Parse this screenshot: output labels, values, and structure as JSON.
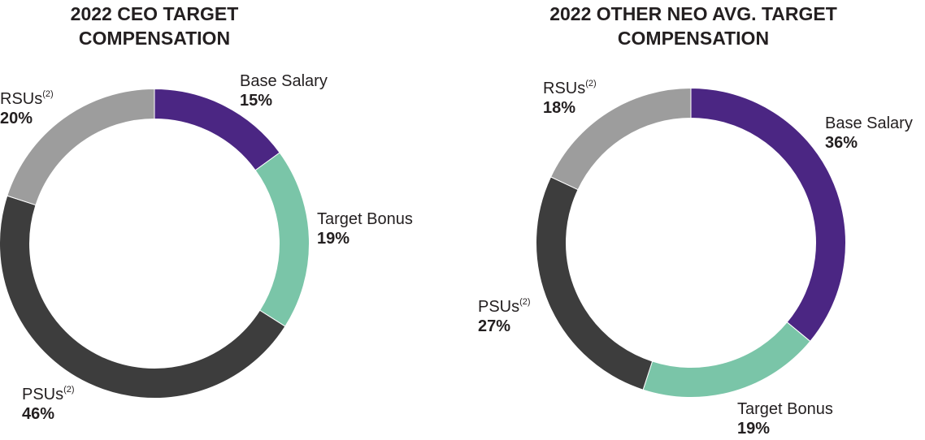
{
  "chart_data": [
    {
      "type": "pie",
      "title": "2022 CEO TARGET COMPENSATION",
      "categories": [
        "Base Salary",
        "Target Bonus",
        "PSUs",
        "RSUs"
      ],
      "values": [
        15,
        19,
        46,
        20
      ],
      "value_labels": [
        "15%",
        "19%",
        "46%",
        "20%"
      ],
      "footnotes": [
        "",
        "",
        "(2)",
        "(2)"
      ],
      "colors": [
        "#4b2683",
        "#7ac5a8",
        "#3d3d3d",
        "#9d9d9d"
      ]
    },
    {
      "type": "pie",
      "title": "2022 OTHER NEO AVG. TARGET COMPENSATION",
      "categories": [
        "Base Salary",
        "Target Bonus",
        "PSUs",
        "RSUs"
      ],
      "values": [
        36,
        19,
        27,
        18
      ],
      "value_labels": [
        "36%",
        "19%",
        "27%",
        "18%"
      ],
      "footnotes": [
        "",
        "",
        "(2)",
        "(2)"
      ],
      "colors": [
        "#4b2683",
        "#7ac5a8",
        "#3d3d3d",
        "#9d9d9d"
      ]
    }
  ]
}
